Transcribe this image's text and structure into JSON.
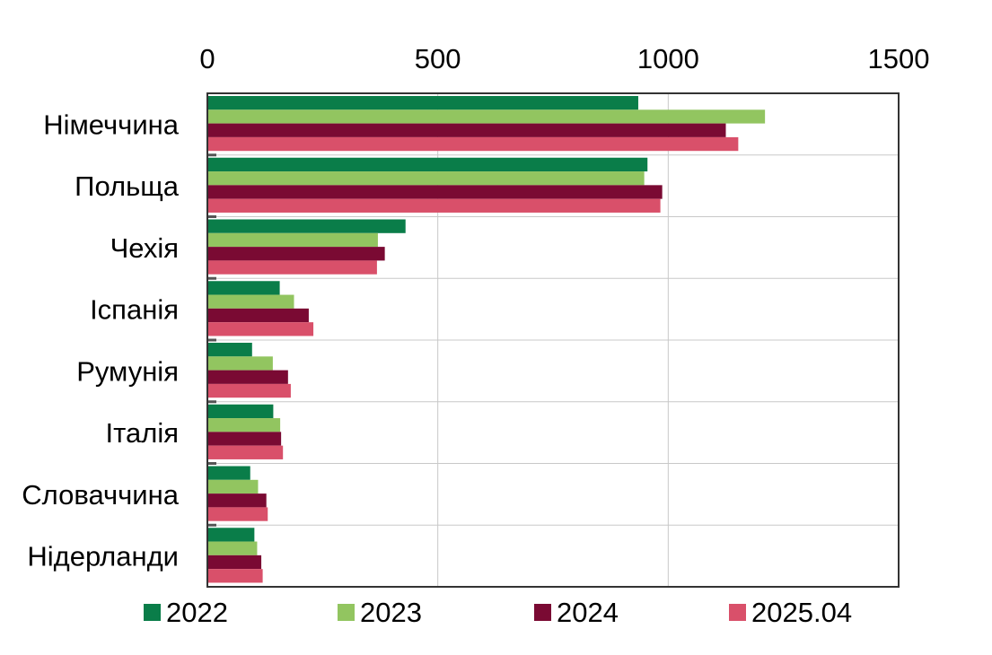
{
  "chart_data": {
    "type": "bar",
    "orientation": "horizontal",
    "title": "",
    "xlabel": "",
    "ylabel": "",
    "xlim": [
      0,
      1500
    ],
    "x_ticks": [
      "0",
      "500",
      "1000",
      "1500"
    ],
    "x_axis_position": "top",
    "grid": true,
    "legend_position": "bottom",
    "categories": [
      "Німеччина",
      "Польща",
      "Чехія",
      "Іспанія",
      "Румунія",
      "Італія",
      "Словаччина",
      "Нідерланди"
    ],
    "series": [
      {
        "name": "2022",
        "color": "#0a7d49",
        "values": [
          935,
          955,
          430,
          157,
          97,
          143,
          93,
          102
        ]
      },
      {
        "name": "2023",
        "color": "#92c560",
        "values": [
          1210,
          948,
          370,
          188,
          142,
          158,
          110,
          108
        ]
      },
      {
        "name": "2024",
        "color": "#7a0a33",
        "values": [
          1125,
          987,
          385,
          220,
          175,
          160,
          128,
          117
        ]
      },
      {
        "name": "2025.04",
        "color": "#d9506a",
        "values": [
          1152,
          983,
          368,
          230,
          181,
          164,
          131,
          120
        ]
      }
    ]
  }
}
